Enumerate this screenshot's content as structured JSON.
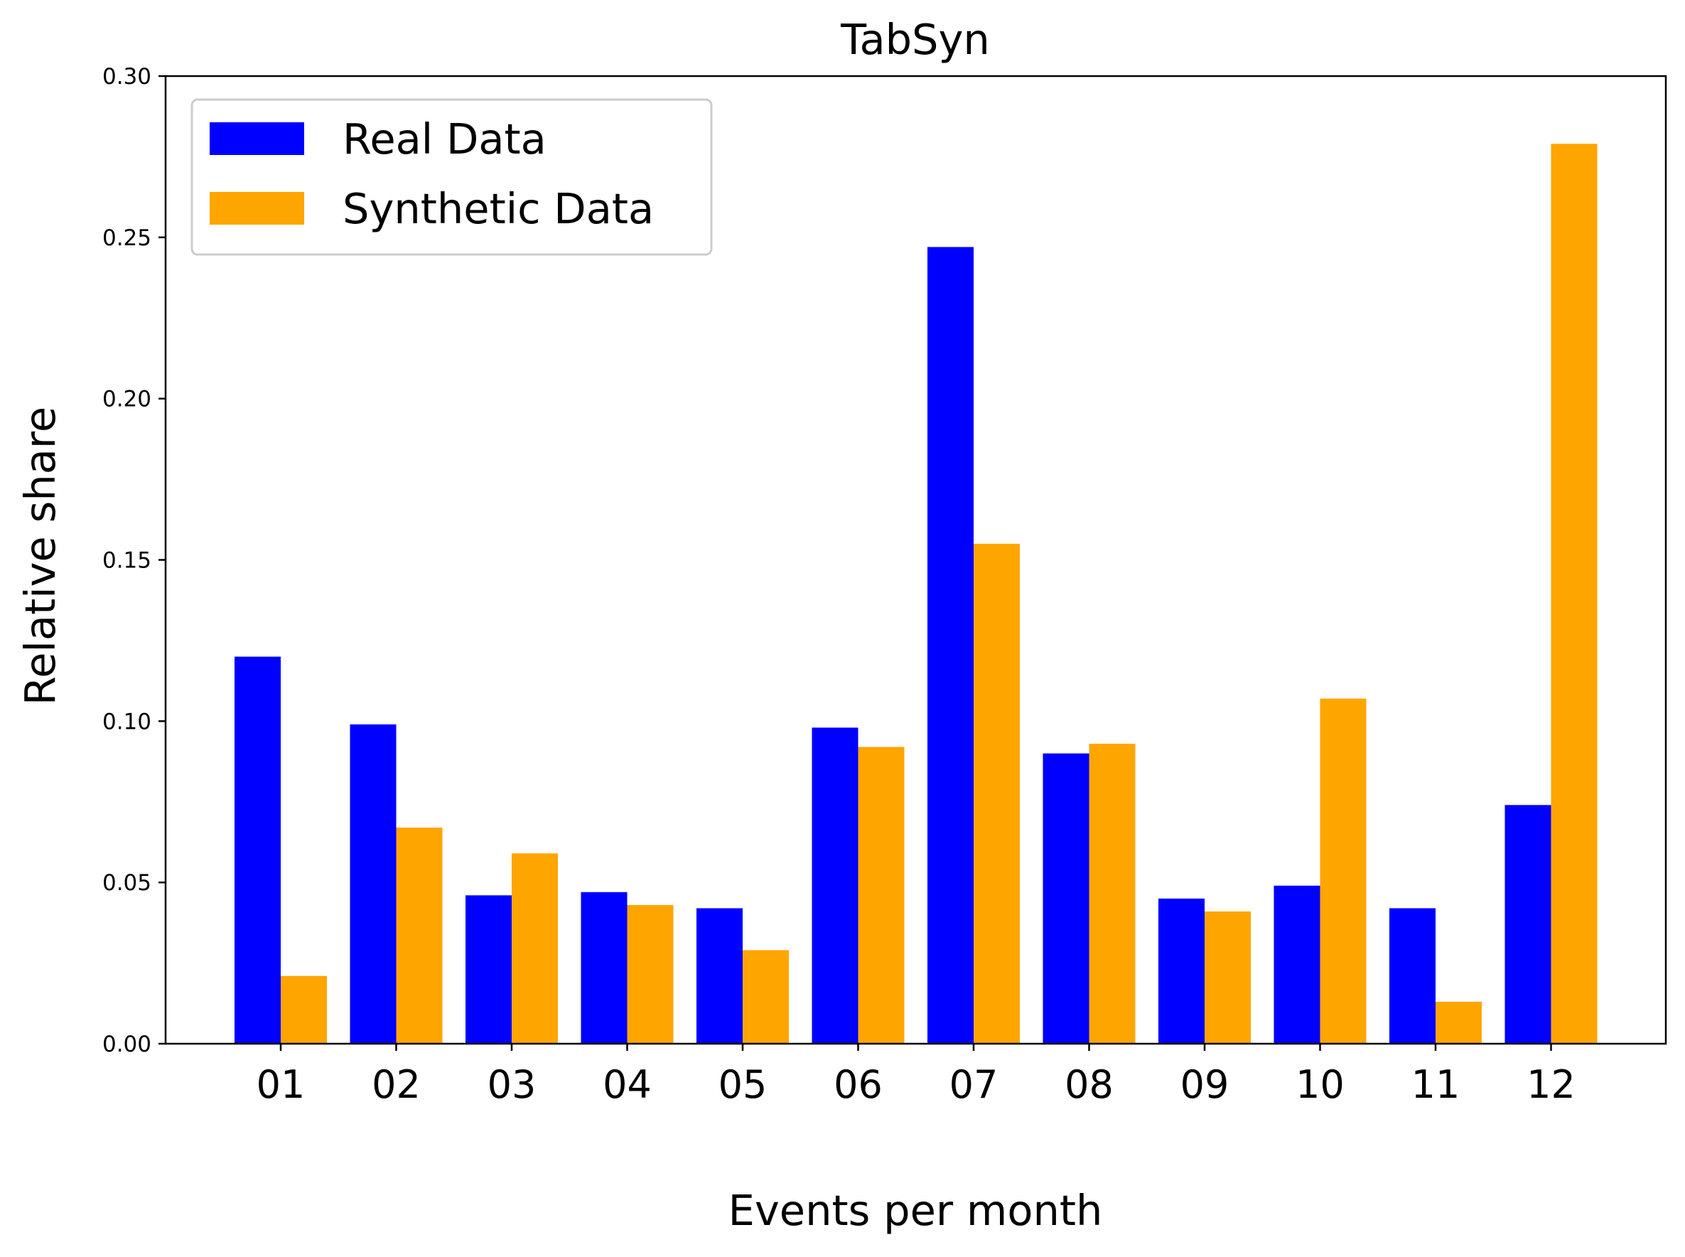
{
  "chart_data": {
    "type": "bar",
    "title": "TabSyn",
    "xlabel": "Events per month",
    "ylabel": "Relative share",
    "ylim": [
      0,
      0.3
    ],
    "yticks": [
      "0.00",
      "0.05",
      "0.10",
      "0.15",
      "0.20",
      "0.25",
      "0.30"
    ],
    "categories": [
      "01",
      "02",
      "03",
      "04",
      "05",
      "06",
      "07",
      "08",
      "09",
      "10",
      "11",
      "12"
    ],
    "series": [
      {
        "name": "Real Data",
        "color": "#0000ff",
        "values": [
          0.12,
          0.099,
          0.046,
          0.047,
          0.042,
          0.098,
          0.247,
          0.09,
          0.045,
          0.049,
          0.042,
          0.074
        ]
      },
      {
        "name": "Synthetic Data",
        "color": "#ffa500",
        "values": [
          0.021,
          0.067,
          0.059,
          0.043,
          0.029,
          0.092,
          0.155,
          0.093,
          0.041,
          0.107,
          0.013,
          0.279
        ]
      }
    ],
    "grid": false,
    "legend_position": "top-left"
  }
}
